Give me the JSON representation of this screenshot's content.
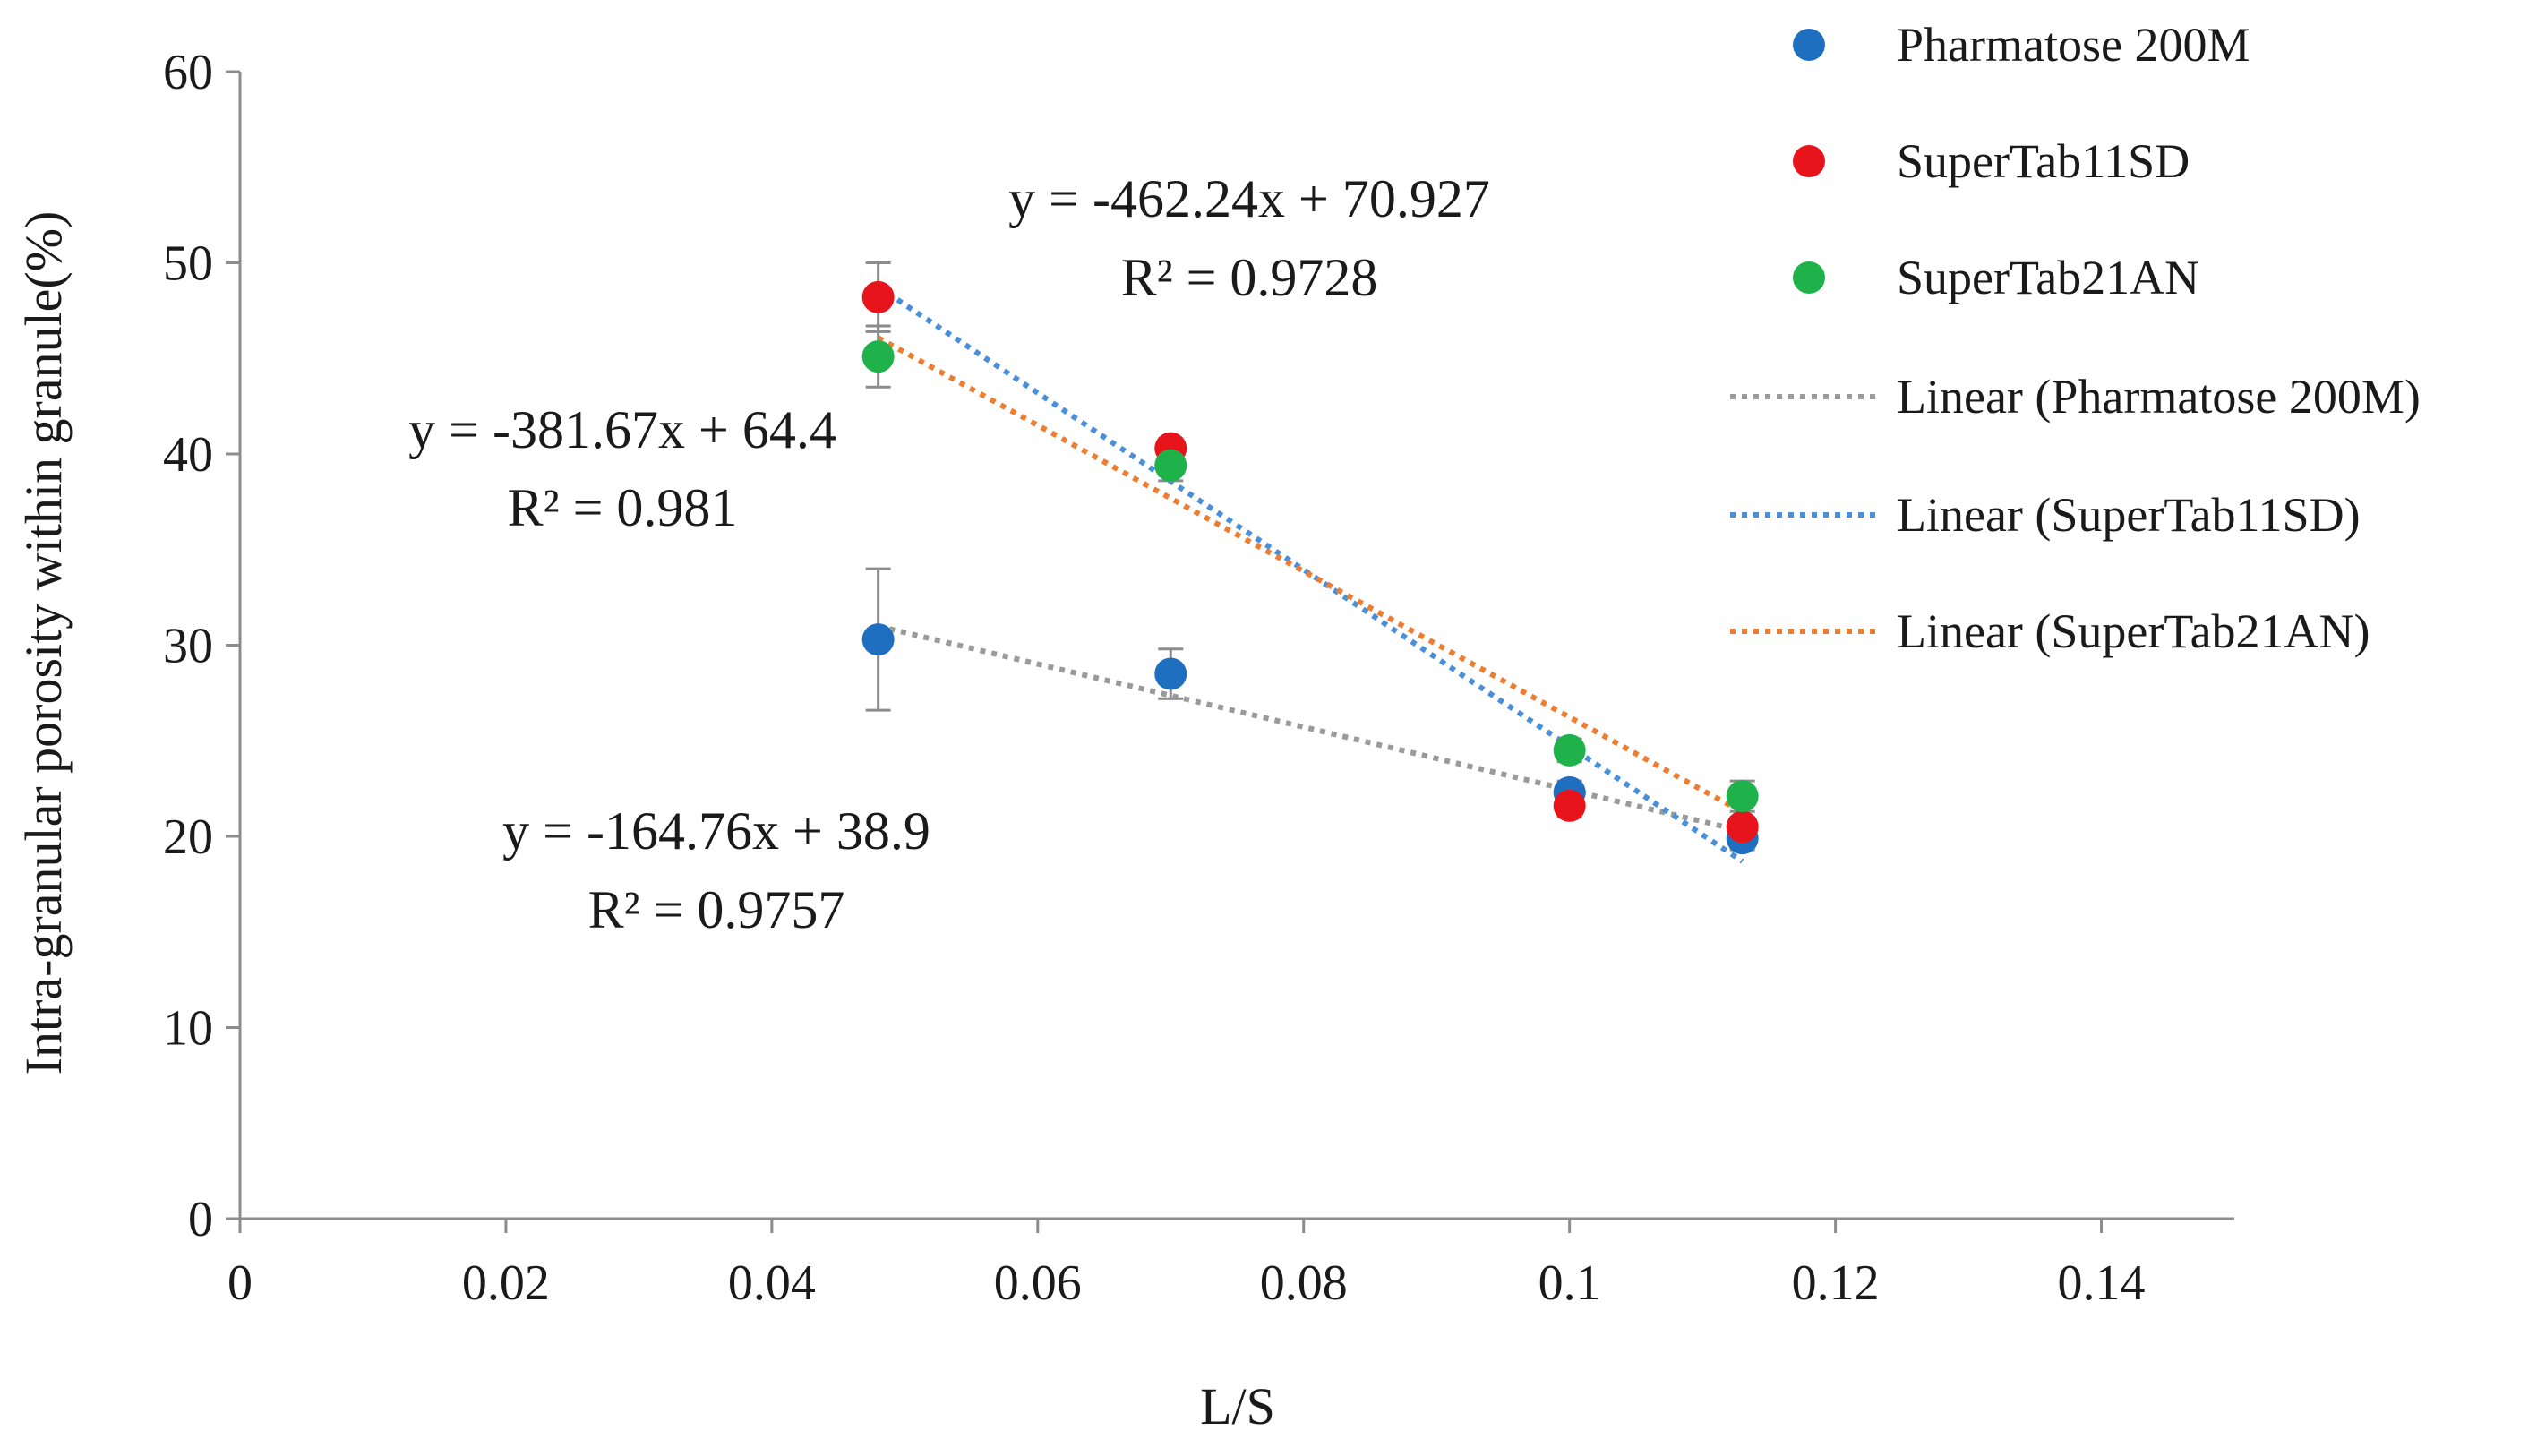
{
  "chart_data": {
    "type": "scatter",
    "xlabel": "L/S",
    "ylabel": "Intra-granular porosity within granule(%)",
    "xlim": [
      0,
      0.15
    ],
    "ylim": [
      0,
      60
    ],
    "xticks": [
      0,
      0.02,
      0.04,
      0.06,
      0.08,
      0.1,
      0.12,
      0.14
    ],
    "xtick_labels": [
      "0",
      "0.02",
      "0.04",
      "0.06",
      "0.08",
      "0.1",
      "0.12",
      "0.14"
    ],
    "yticks": [
      0,
      10,
      20,
      30,
      40,
      50,
      60
    ],
    "ytick_labels": [
      "0",
      "10",
      "20",
      "30",
      "40",
      "50",
      "60"
    ],
    "grid": false,
    "legend_position": "top-right",
    "series": [
      {
        "name": "Pharmatose 200M",
        "color": "#1f6fc1",
        "x": [
          0.048,
          0.07,
          0.1,
          0.113
        ],
        "y": [
          30.3,
          28.5,
          22.3,
          19.9
        ],
        "yerr": [
          3.7,
          1.3,
          0.6,
          0.6
        ],
        "trend_label": "Linear (Pharmatose 200M)",
        "trend_color": "#9a9a9a",
        "trend": {
          "slope": -164.76,
          "intercept": 38.9,
          "x_range": [
            0.048,
            0.113
          ]
        },
        "equation": "y = -164.76x + 38.9",
        "r2": "R² = 0.9757"
      },
      {
        "name": "SuperTab11SD",
        "color": "#e8141b",
        "x": [
          0.048,
          0.07,
          0.1,
          0.113
        ],
        "y": [
          48.2,
          40.3,
          21.6,
          20.5
        ],
        "yerr": [
          1.8,
          0.5,
          0.6,
          0.5
        ],
        "trend_label": "Linear (SuperTab11SD)",
        "trend_color": "#4a90d9",
        "trend": {
          "slope": -462.24,
          "intercept": 70.927,
          "x_range": [
            0.048,
            0.113
          ]
        },
        "equation": "y = -462.24x + 70.927",
        "r2": "R² = 0.9728"
      },
      {
        "name": "SuperTab21AN",
        "color": "#1fb24a",
        "x": [
          0.048,
          0.07,
          0.1,
          0.113
        ],
        "y": [
          45.1,
          39.4,
          24.5,
          22.1
        ],
        "yerr": [
          1.6,
          0.8,
          0.6,
          0.8
        ],
        "trend_label": "Linear (SuperTab21AN)",
        "trend_color": "#ed7d31",
        "trend": {
          "slope": -381.67,
          "intercept": 64.4,
          "x_range": [
            0.048,
            0.113
          ]
        },
        "equation": "y = -381.67x + 64.4",
        "r2": "R² = 0.981"
      }
    ]
  }
}
